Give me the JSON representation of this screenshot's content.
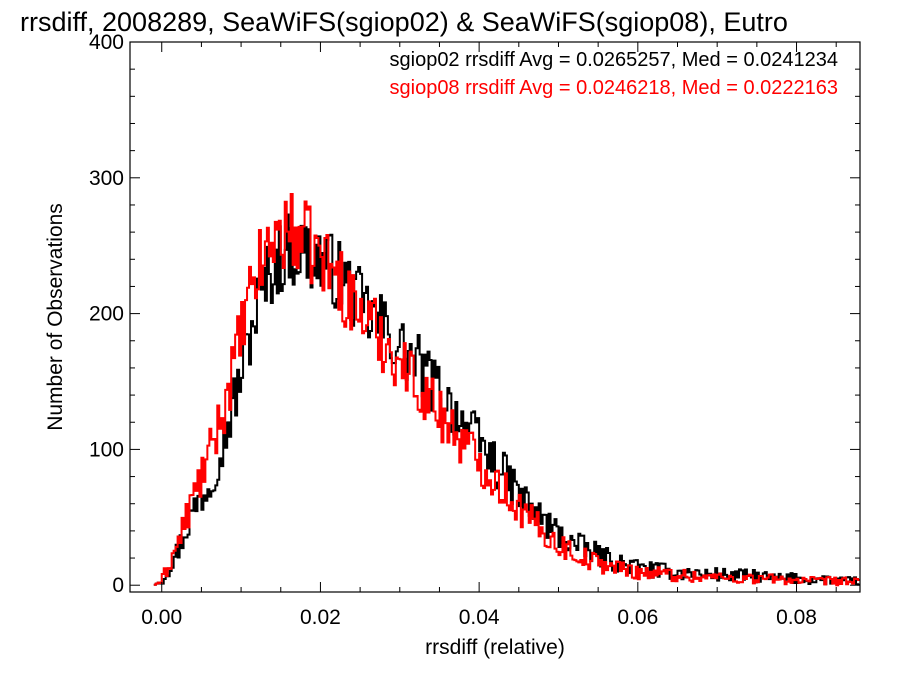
{
  "chart_data": {
    "type": "histogram",
    "title": "rrsdiff, 2008289, SeaWiFS(sgiop02) & SeaWiFS(sgiop08), Eutro",
    "xlabel": "rrsdiff (relative)",
    "ylabel": "Number of Observations",
    "xlim": [
      -0.004,
      0.088
    ],
    "ylim": [
      -5,
      400
    ],
    "x_ticks": [
      0.0,
      0.02,
      0.04,
      0.06,
      0.08
    ],
    "x_tick_labels": [
      "0.00",
      "0.02",
      "0.04",
      "0.06",
      "0.08"
    ],
    "y_ticks": [
      0,
      100,
      200,
      300,
      400
    ],
    "y_tick_labels": [
      "0",
      "100",
      "200",
      "300",
      "400"
    ],
    "legend_position": "top-right",
    "series": [
      {
        "name": "sgiop02",
        "color": "#000000",
        "stats_label": "sgiop02 rrsdiff Avg = 0.0265257, Med = 0.0241234",
        "anchors_x": [
          -0.001,
          0.0,
          0.002,
          0.004,
          0.006,
          0.008,
          0.01,
          0.012,
          0.014,
          0.016,
          0.018,
          0.02,
          0.022,
          0.024,
          0.026,
          0.028,
          0.03,
          0.032,
          0.034,
          0.036,
          0.038,
          0.04,
          0.042,
          0.044,
          0.046,
          0.048,
          0.05,
          0.052,
          0.054,
          0.056,
          0.058,
          0.06,
          0.062,
          0.064,
          0.066,
          0.068,
          0.07,
          0.072,
          0.074,
          0.076,
          0.078,
          0.08,
          0.082,
          0.084,
          0.086,
          0.088
        ],
        "anchors_y": [
          0,
          3,
          25,
          55,
          75,
          110,
          155,
          205,
          235,
          248,
          245,
          240,
          230,
          215,
          200,
          190,
          175,
          165,
          150,
          135,
          120,
          105,
          90,
          75,
          60,
          48,
          38,
          30,
          25,
          20,
          16,
          13,
          11,
          10,
          9,
          8,
          8,
          7,
          7,
          6,
          5,
          5,
          4,
          4,
          3,
          3
        ]
      },
      {
        "name": "sgiop08",
        "color": "#ff0000",
        "stats_label": "sgiop08 rrsdiff Avg = 0.0246218, Med = 0.0222163",
        "anchors_x": [
          -0.001,
          0.0,
          0.002,
          0.004,
          0.006,
          0.008,
          0.01,
          0.012,
          0.014,
          0.016,
          0.018,
          0.02,
          0.022,
          0.024,
          0.026,
          0.028,
          0.03,
          0.032,
          0.034,
          0.036,
          0.038,
          0.04,
          0.042,
          0.044,
          0.046,
          0.048,
          0.05,
          0.052,
          0.054,
          0.056,
          0.058,
          0.06,
          0.062,
          0.064,
          0.066,
          0.068,
          0.07,
          0.072,
          0.074,
          0.076,
          0.078,
          0.08,
          0.082,
          0.084,
          0.086,
          0.088
        ],
        "anchors_y": [
          0,
          3,
          30,
          65,
          95,
          135,
          185,
          230,
          255,
          262,
          255,
          242,
          228,
          208,
          195,
          180,
          165,
          150,
          135,
          120,
          105,
          92,
          78,
          65,
          50,
          40,
          30,
          24,
          18,
          15,
          12,
          10,
          9,
          8,
          7,
          6,
          6,
          5,
          5,
          5,
          4,
          4,
          3,
          3,
          3,
          2
        ]
      }
    ],
    "bin_width": 0.00025
  }
}
